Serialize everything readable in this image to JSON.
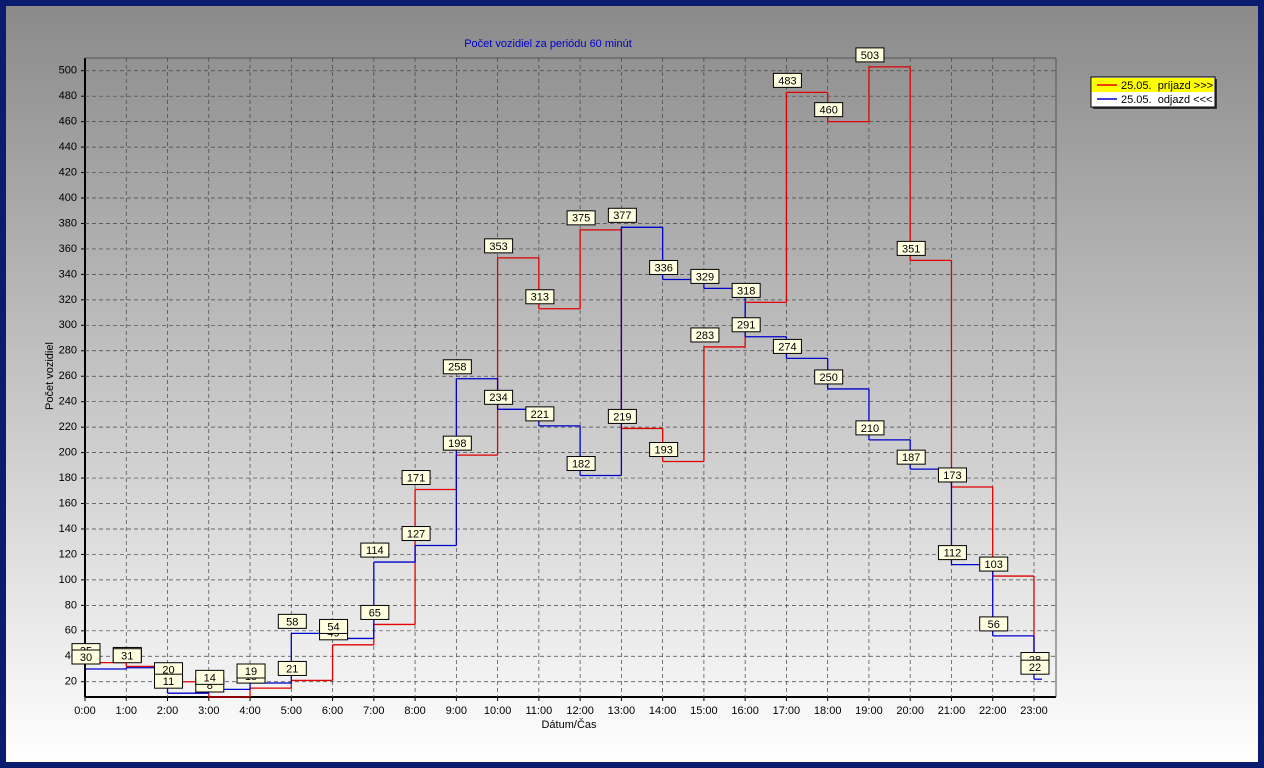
{
  "chart_data": {
    "type": "step",
    "title": "Počet vozidiel za periódu 60 minút",
    "xlabel": "Dátum/Čas",
    "ylabel": "Počet vozidiel",
    "categories": [
      "0:00",
      "1:00",
      "2:00",
      "3:00",
      "4:00",
      "5:00",
      "6:00",
      "7:00",
      "8:00",
      "9:00",
      "10:00",
      "11:00",
      "12:00",
      "13:00",
      "14:00",
      "15:00",
      "16:00",
      "17:00",
      "18:00",
      "19:00",
      "20:00",
      "21:00",
      "22:00",
      "23:00"
    ],
    "series": [
      {
        "name": "25.05.  príjazd >>>",
        "color": "#e00000",
        "legend_background": "#ffff00",
        "values": [
          35,
          32,
          20,
          8,
          15,
          21,
          49,
          65,
          171,
          198,
          353,
          313,
          375,
          219,
          193,
          283,
          318,
          483,
          460,
          503,
          351,
          173,
          103,
          28
        ]
      },
      {
        "name": "25.05.  odjazd <<<",
        "color": "#0000cc",
        "legend_background": "#ffffff",
        "values": [
          30,
          31,
          11,
          14,
          19,
          58,
          54,
          114,
          127,
          258,
          234,
          221,
          182,
          377,
          336,
          329,
          291,
          274,
          250,
          210,
          187,
          112,
          56,
          22
        ]
      }
    ],
    "ylim": [
      8,
      510
    ],
    "yticks": [
      20,
      40,
      60,
      80,
      100,
      120,
      140,
      160,
      180,
      200,
      220,
      240,
      260,
      280,
      300,
      320,
      340,
      360,
      380,
      400,
      420,
      440,
      460,
      480,
      500
    ],
    "grid": true,
    "legend": "right"
  }
}
